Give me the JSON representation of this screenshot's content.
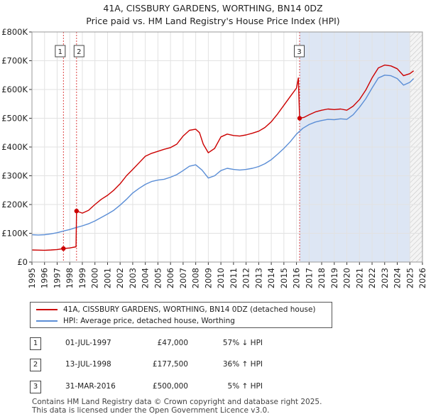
{
  "title_line1": "41A, CISSBURY GARDENS, WORTHING, BN14 0DZ",
  "title_line2": "Price paid vs. HM Land Registry's House Price Index (HPI)",
  "chart_data": {
    "type": "line",
    "title": "41A, CISSBURY GARDENS, WORTHING, BN14 0DZ — Price paid vs. HM Land Registry's House Price Index (HPI)",
    "xlim": [
      1995,
      2026
    ],
    "ylim": [
      0,
      800000
    ],
    "x_ticks": [
      "1995",
      "1996",
      "1997",
      "1998",
      "1999",
      "2000",
      "2001",
      "2002",
      "2003",
      "2004",
      "2005",
      "2006",
      "2007",
      "2008",
      "2009",
      "2010",
      "2011",
      "2012",
      "2013",
      "2014",
      "2015",
      "2016",
      "2017",
      "2018",
      "2019",
      "2020",
      "2021",
      "2022",
      "2023",
      "2024",
      "2025",
      "2026"
    ],
    "y_ticks": [
      {
        "value": 0,
        "label": "£0"
      },
      {
        "value": 100000,
        "label": "£100K"
      },
      {
        "value": 200000,
        "label": "£200K"
      },
      {
        "value": 300000,
        "label": "£300K"
      },
      {
        "value": 400000,
        "label": "£400K"
      },
      {
        "value": 500000,
        "label": "£500K"
      },
      {
        "value": 600000,
        "label": "£600K"
      },
      {
        "value": 700000,
        "label": "£700K"
      },
      {
        "value": 800000,
        "label": "£800K"
      }
    ],
    "hatch_from": 2025,
    "shaded_from": 2016.25,
    "series": [
      {
        "name": "41A, CISSBURY GARDENS, WORTHING, BN14 0DZ (detached house)",
        "color": "#cc0000",
        "points": [
          [
            1995.0,
            42000
          ],
          [
            1995.5,
            41500
          ],
          [
            1996.0,
            41000
          ],
          [
            1996.5,
            42000
          ],
          [
            1997.0,
            43500
          ],
          [
            1997.5,
            47000
          ],
          [
            1998.0,
            49000
          ],
          [
            1998.5,
            53000
          ],
          [
            1998.54,
            177500
          ],
          [
            1999.0,
            170000
          ],
          [
            1999.5,
            180000
          ],
          [
            2000.0,
            200000
          ],
          [
            2000.5,
            218000
          ],
          [
            2001.0,
            232000
          ],
          [
            2001.5,
            250000
          ],
          [
            2002.0,
            272000
          ],
          [
            2002.5,
            300000
          ],
          [
            2003.0,
            322000
          ],
          [
            2003.5,
            345000
          ],
          [
            2004.0,
            368000
          ],
          [
            2004.5,
            378000
          ],
          [
            2005.0,
            385000
          ],
          [
            2005.5,
            392000
          ],
          [
            2006.0,
            398000
          ],
          [
            2006.5,
            410000
          ],
          [
            2007.0,
            438000
          ],
          [
            2007.5,
            458000
          ],
          [
            2008.0,
            462000
          ],
          [
            2008.3,
            450000
          ],
          [
            2008.6,
            410000
          ],
          [
            2009.0,
            380000
          ],
          [
            2009.5,
            395000
          ],
          [
            2010.0,
            435000
          ],
          [
            2010.5,
            445000
          ],
          [
            2011.0,
            440000
          ],
          [
            2011.5,
            438000
          ],
          [
            2012.0,
            442000
          ],
          [
            2012.5,
            448000
          ],
          [
            2013.0,
            455000
          ],
          [
            2013.5,
            468000
          ],
          [
            2014.0,
            488000
          ],
          [
            2014.5,
            515000
          ],
          [
            2015.0,
            545000
          ],
          [
            2015.5,
            575000
          ],
          [
            2016.0,
            605000
          ],
          [
            2016.15,
            640000
          ],
          [
            2016.25,
            500000
          ],
          [
            2016.6,
            503000
          ],
          [
            2017.0,
            512000
          ],
          [
            2017.5,
            522000
          ],
          [
            2018.0,
            528000
          ],
          [
            2018.5,
            532000
          ],
          [
            2019.0,
            530000
          ],
          [
            2019.5,
            532000
          ],
          [
            2020.0,
            528000
          ],
          [
            2020.5,
            542000
          ],
          [
            2021.0,
            565000
          ],
          [
            2021.5,
            598000
          ],
          [
            2022.0,
            640000
          ],
          [
            2022.5,
            675000
          ],
          [
            2023.0,
            685000
          ],
          [
            2023.5,
            682000
          ],
          [
            2024.0,
            672000
          ],
          [
            2024.5,
            648000
          ],
          [
            2025.0,
            655000
          ],
          [
            2025.3,
            665000
          ]
        ]
      },
      {
        "name": "HPI: Average price, detached house, Worthing",
        "color": "#5b8ed6",
        "points": [
          [
            1995.0,
            95000
          ],
          [
            1995.5,
            94000
          ],
          [
            1996.0,
            95000
          ],
          [
            1996.5,
            98000
          ],
          [
            1997.0,
            102000
          ],
          [
            1997.5,
            108000
          ],
          [
            1998.0,
            113000
          ],
          [
            1998.5,
            120000
          ],
          [
            1999.0,
            126000
          ],
          [
            1999.5,
            133000
          ],
          [
            2000.0,
            143000
          ],
          [
            2000.5,
            155000
          ],
          [
            2001.0,
            167000
          ],
          [
            2001.5,
            180000
          ],
          [
            2002.0,
            198000
          ],
          [
            2002.5,
            218000
          ],
          [
            2003.0,
            240000
          ],
          [
            2003.5,
            256000
          ],
          [
            2004.0,
            270000
          ],
          [
            2004.5,
            280000
          ],
          [
            2005.0,
            285000
          ],
          [
            2005.5,
            288000
          ],
          [
            2006.0,
            295000
          ],
          [
            2006.5,
            304000
          ],
          [
            2007.0,
            318000
          ],
          [
            2007.5,
            333000
          ],
          [
            2008.0,
            338000
          ],
          [
            2008.5,
            320000
          ],
          [
            2009.0,
            292000
          ],
          [
            2009.5,
            300000
          ],
          [
            2010.0,
            318000
          ],
          [
            2010.5,
            326000
          ],
          [
            2011.0,
            322000
          ],
          [
            2011.5,
            320000
          ],
          [
            2012.0,
            322000
          ],
          [
            2012.5,
            326000
          ],
          [
            2013.0,
            332000
          ],
          [
            2013.5,
            342000
          ],
          [
            2014.0,
            356000
          ],
          [
            2014.5,
            375000
          ],
          [
            2015.0,
            395000
          ],
          [
            2015.5,
            418000
          ],
          [
            2016.0,
            445000
          ],
          [
            2016.5,
            465000
          ],
          [
            2017.0,
            478000
          ],
          [
            2017.5,
            487000
          ],
          [
            2018.0,
            492000
          ],
          [
            2018.5,
            496000
          ],
          [
            2019.0,
            495000
          ],
          [
            2019.5,
            498000
          ],
          [
            2020.0,
            496000
          ],
          [
            2020.5,
            512000
          ],
          [
            2021.0,
            538000
          ],
          [
            2021.5,
            568000
          ],
          [
            2022.0,
            605000
          ],
          [
            2022.5,
            640000
          ],
          [
            2023.0,
            650000
          ],
          [
            2023.5,
            648000
          ],
          [
            2024.0,
            638000
          ],
          [
            2024.5,
            615000
          ],
          [
            2025.0,
            625000
          ],
          [
            2025.3,
            638000
          ]
        ]
      }
    ],
    "transactions": [
      {
        "id": "1",
        "x": 1997.5,
        "price": 47000
      },
      {
        "id": "2",
        "x": 1998.54,
        "price": 177500
      },
      {
        "id": "3",
        "x": 2016.25,
        "price": 500000
      }
    ]
  },
  "legend": {
    "property_label": "41A, CISSBURY GARDENS, WORTHING, BN14 0DZ (detached house)",
    "hpi_label": "HPI: Average price, detached house, Worthing",
    "property_color": "#cc0000",
    "hpi_color": "#5b8ed6"
  },
  "sales": [
    {
      "id": "1",
      "date": "01-JUL-1997",
      "price": "£47,000",
      "hpi": "57% ↓ HPI"
    },
    {
      "id": "2",
      "date": "13-JUL-1998",
      "price": "£177,500",
      "hpi": "36% ↑ HPI"
    },
    {
      "id": "3",
      "date": "31-MAR-2016",
      "price": "£500,000",
      "hpi": "5% ↑ HPI"
    }
  ],
  "footer": {
    "line1": "Contains HM Land Registry data © Crown copyright and database right 2025.",
    "line2": "This data is licensed under the Open Government Licence v3.0."
  }
}
